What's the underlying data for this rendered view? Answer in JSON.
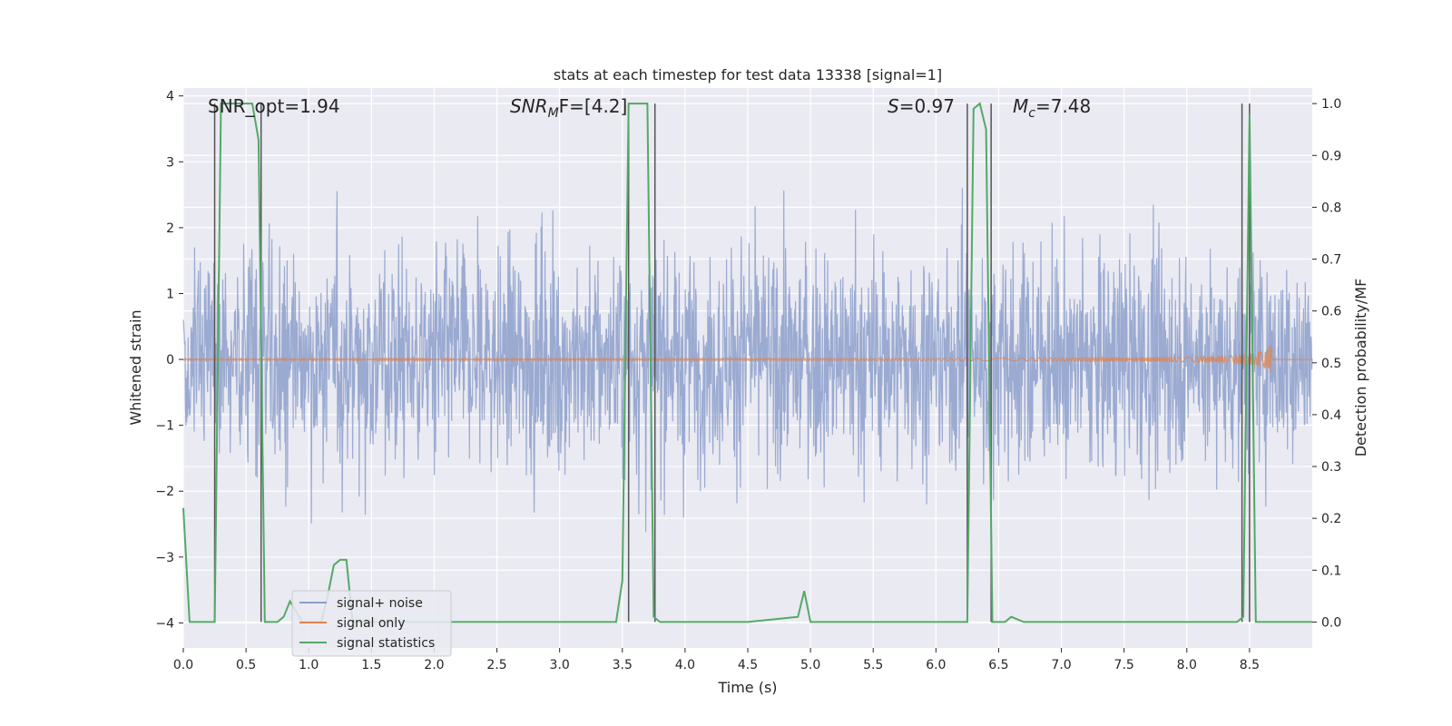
{
  "chart_data": {
    "type": "line",
    "title": "stats at each timestep for test data 13338 [signal=1]",
    "xlabel": "Time (s)",
    "ylabel_left": "Whitened strain",
    "ylabel_right": "Detection probability/MF",
    "xlim": [
      0.0,
      9.0
    ],
    "ylim_left": [
      -4.38,
      4.12
    ],
    "ylim_right": [
      -0.05,
      1.03
    ],
    "x_ticks": [
      "0.0",
      "0.5",
      "1.0",
      "1.5",
      "2.0",
      "2.5",
      "3.0",
      "3.5",
      "4.0",
      "4.5",
      "5.0",
      "5.5",
      "6.0",
      "6.5",
      "7.0",
      "7.5",
      "8.0",
      "8.5"
    ],
    "y_ticks_left": [
      "−4",
      "−3",
      "−2",
      "−1",
      "0",
      "1",
      "2",
      "3",
      "4"
    ],
    "y_ticks_right": [
      "0.0",
      "0.1",
      "0.2",
      "0.3",
      "0.4",
      "0.5",
      "0.6",
      "0.7",
      "0.8",
      "0.9",
      "1.0"
    ],
    "grid": true,
    "annotations": {
      "snr_opt": "SNR_opt=1.94",
      "snr_mf_base": "SNR",
      "snr_mf_sub": "M",
      "snr_mf_rest": "F=[4.2]",
      "s_sym": "S",
      "s_val": "=0.97",
      "mc_sym": "M",
      "mc_sub": "c",
      "mc_val": "=7.48"
    },
    "legend": {
      "placement": "lower-left",
      "entries": [
        "signal+ noise",
        "signal only",
        "signal statistics"
      ]
    },
    "series": [
      {
        "name": "signal+ noise",
        "axis": "left",
        "color": "#8c9fcb",
        "description_amplitude_range": [
          -3.6,
          3.8
        ]
      },
      {
        "name": "signal only",
        "axis": "left",
        "color": "#dd8452",
        "chirp_end_time": 8.68,
        "chirp_peak_amplitude": 0.25
      },
      {
        "name": "signal statistics",
        "axis": "right",
        "color": "#55a868",
        "x": [
          0.0,
          0.05,
          0.1,
          0.15,
          0.2,
          0.25,
          0.3,
          0.35,
          0.4,
          0.45,
          0.5,
          0.55,
          0.6,
          0.65,
          0.7,
          0.75,
          0.8,
          0.85,
          0.9,
          0.95,
          1.0,
          1.05,
          1.1,
          1.15,
          1.2,
          1.25,
          1.3,
          1.35,
          1.4,
          1.45,
          1.5,
          2.0,
          2.5,
          3.0,
          3.45,
          3.5,
          3.55,
          3.6,
          3.65,
          3.7,
          3.75,
          3.8,
          3.85,
          3.9,
          4.0,
          4.5,
          4.9,
          4.95,
          5.0,
          5.05,
          5.1,
          5.5,
          6.0,
          6.2,
          6.25,
          6.3,
          6.35,
          6.4,
          6.45,
          6.5,
          6.55,
          6.6,
          6.7,
          6.8,
          7.0,
          7.5,
          8.0,
          8.4,
          8.45,
          8.5,
          8.55,
          8.6,
          8.7,
          9.0
        ],
        "values": [
          0.22,
          0.0,
          0.0,
          0.0,
          0.0,
          0.0,
          1.0,
          1.0,
          1.0,
          1.0,
          1.0,
          1.0,
          0.93,
          0.0,
          0.0,
          0.0,
          0.01,
          0.04,
          0.02,
          0.0,
          0.0,
          0.0,
          0.0,
          0.05,
          0.11,
          0.12,
          0.12,
          0.0,
          0.0,
          0.0,
          0.0,
          0.0,
          0.0,
          0.0,
          0.0,
          0.08,
          1.0,
          1.0,
          1.0,
          1.0,
          0.01,
          0.0,
          0.0,
          0.0,
          0.0,
          0.0,
          0.01,
          0.06,
          0.0,
          0.0,
          0.0,
          0.0,
          0.0,
          0.0,
          0.0,
          0.99,
          1.0,
          0.95,
          0.0,
          0.0,
          0.0,
          0.01,
          0.0,
          0.0,
          0.0,
          0.0,
          0.0,
          0.0,
          0.01,
          0.98,
          0.0,
          0.0,
          0.0,
          0.0
        ]
      }
    ],
    "vertical_markers_x": [
      0.25,
      0.62,
      3.55,
      3.76,
      6.25,
      6.44,
      8.44,
      8.5
    ]
  }
}
